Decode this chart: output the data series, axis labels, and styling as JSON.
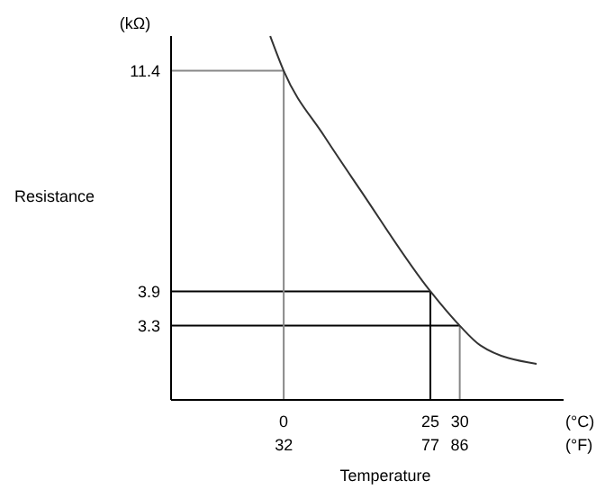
{
  "chart_data": {
    "type": "line",
    "xlabel": "Temperature",
    "ylabel": "Resistance",
    "annotations": [
      "(kΩ)",
      "(°C)",
      "(°F)"
    ],
    "x": [
      -2.3,
      0,
      6.9,
      13,
      25,
      30,
      33.5,
      43.1
    ],
    "series": [
      {
        "color": "#333333",
        "values": [
          13.5,
          11.4,
          8.3,
          6.4,
          3.9,
          3.3,
          3.0,
          2.74
        ]
      }
    ],
    "log": "y",
    "xlim": [
      -19.2,
      47.7
    ],
    "xticks": [
      0,
      25,
      30
    ],
    "ylim": [
      2.3,
      13.5
    ],
    "yticks": [
      3.3,
      3.9,
      11.4
    ],
    "x2lim": [
      -2.6,
      117.9
    ],
    "x2ticks": [
      32,
      77,
      86
    ],
    "ref_lines": [
      {
        "axis": "y",
        "value": 11.4,
        "color": "#888888"
      },
      {
        "axis": "y",
        "value": 3.9,
        "color": "#000000"
      },
      {
        "axis": "y",
        "value": 3.3,
        "color": "#000000"
      },
      {
        "axis": "x",
        "value": 0,
        "color": "#888888"
      },
      {
        "axis": "x",
        "value": 25,
        "color": "#000000"
      },
      {
        "axis": "x",
        "value": 30,
        "color": "#888888"
      }
    ],
    "grid": false,
    "marker": "none",
    "line_style": "solid"
  }
}
